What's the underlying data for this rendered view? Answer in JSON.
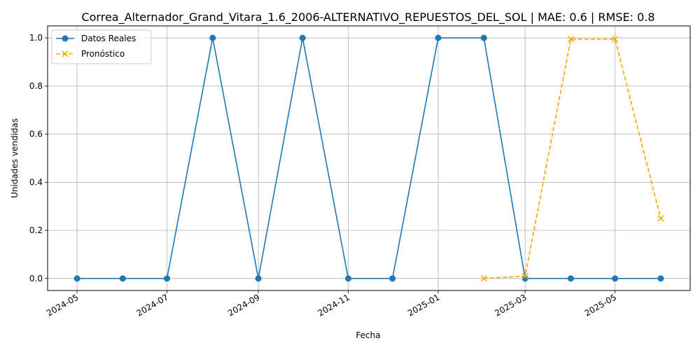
{
  "chart_data": {
    "type": "line",
    "title": "Correa_Alternador_Grand_Vitara_1.6_2006-ALTERNATIVO_REPUESTOS_DEL_SOL | MAE: 0.6 | RMSE: 0.8",
    "xlabel": "Fecha",
    "ylabel": "Unidades vendidas",
    "xlim": [
      "2024-04-11",
      "2025-06-21"
    ],
    "ylim": [
      -0.05,
      1.05
    ],
    "x_ticks": [
      "2024-05",
      "2024-07",
      "2024-09",
      "2024-11",
      "2025-01",
      "2025-03",
      "2025-05"
    ],
    "x_tick_dates": [
      "2024-05-01",
      "2024-07-01",
      "2024-09-01",
      "2024-11-01",
      "2025-01-01",
      "2025-03-01",
      "2025-05-01"
    ],
    "y_ticks": [
      "0.0",
      "0.2",
      "0.4",
      "0.6",
      "0.8",
      "1.0"
    ],
    "y_tick_values": [
      0,
      0.2,
      0.4,
      0.6,
      0.8,
      1.0
    ],
    "grid": true,
    "legend_position": "top-left",
    "series": [
      {
        "name": "Datos Reales",
        "color": "#1f77b4",
        "line_style": "solid",
        "marker": "circle",
        "points": [
          {
            "x": "2024-05-01",
            "y": 0
          },
          {
            "x": "2024-06-01",
            "y": 0
          },
          {
            "x": "2024-07-01",
            "y": 0
          },
          {
            "x": "2024-08-01",
            "y": 1
          },
          {
            "x": "2024-09-01",
            "y": 0
          },
          {
            "x": "2024-10-01",
            "y": 1
          },
          {
            "x": "2024-11-01",
            "y": 0
          },
          {
            "x": "2024-12-01",
            "y": 0
          },
          {
            "x": "2025-01-01",
            "y": 1
          },
          {
            "x": "2025-02-01",
            "y": 1
          },
          {
            "x": "2025-03-01",
            "y": 0
          },
          {
            "x": "2025-04-01",
            "y": 0
          },
          {
            "x": "2025-05-01",
            "y": 0
          },
          {
            "x": "2025-06-01",
            "y": 0
          }
        ]
      },
      {
        "name": "Pronóstico",
        "color": "#ffa500",
        "line_style": "dashed",
        "marker": "x",
        "points": [
          {
            "x": "2025-02-01",
            "y": 0.0
          },
          {
            "x": "2025-03-01",
            "y": 0.01
          },
          {
            "x": "2025-04-01",
            "y": 0.995
          },
          {
            "x": "2025-05-01",
            "y": 0.995
          },
          {
            "x": "2025-06-01",
            "y": 0.25
          }
        ]
      }
    ]
  }
}
